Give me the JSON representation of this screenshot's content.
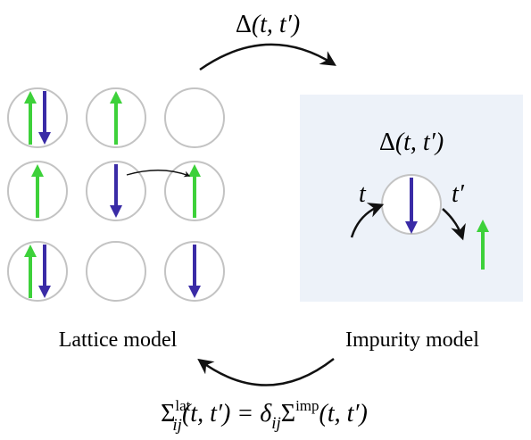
{
  "top_formula": {
    "symbol": "Δ",
    "args": "(t, t′)"
  },
  "impurity_formula": {
    "symbol": "Δ",
    "args": "(t, t′)"
  },
  "impurity": {
    "label_t": "t",
    "label_t_prime": "t′"
  },
  "labels": {
    "lattice_model": "Lattice model",
    "impurity_model": "Impurity model"
  },
  "bottom_formula": {
    "lhs_symbol": "Σ",
    "lhs_sup": "lat",
    "lhs_sub": "ij",
    "lhs_args": "(t, t′) = ",
    "delta": "δ",
    "delta_sub": "ij",
    "rhs_symbol": "Σ",
    "rhs_sup": "imp",
    "rhs_args": "(t, t′)"
  },
  "colors": {
    "spin_up": "#3dd13a",
    "spin_down": "#3a2ba6",
    "site_stroke": "#c3c3c3",
    "impurity_bg": "#edf2f9",
    "arrow": "#111111"
  },
  "lattice_sites": [
    [
      "up-down",
      "up",
      "empty"
    ],
    [
      "up",
      "down",
      "up"
    ],
    [
      "up-down",
      "empty",
      "down"
    ]
  ]
}
